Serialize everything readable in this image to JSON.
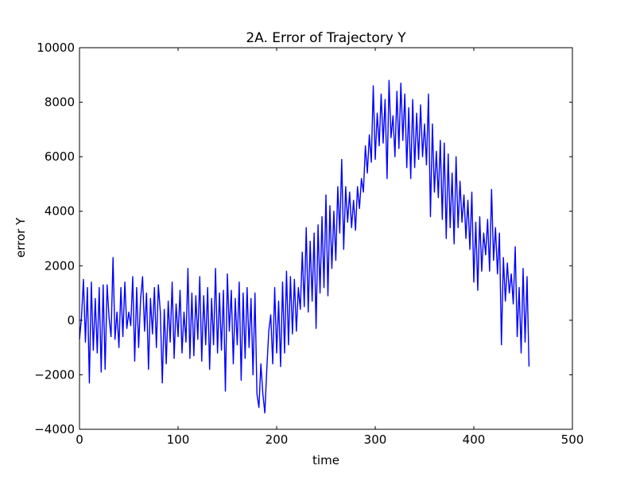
{
  "colors": {
    "line": "#0000ff",
    "axes": "#000000",
    "background": "#ffffff"
  },
  "chart_data": {
    "type": "line",
    "title": "2A. Error of Trajectory Y",
    "xlabel": "time",
    "ylabel": "error Y",
    "xlim": [
      0,
      500
    ],
    "ylim": [
      -4000,
      10000
    ],
    "xticks": [
      0,
      100,
      200,
      300,
      400,
      500
    ],
    "yticks": [
      -4000,
      -2000,
      0,
      2000,
      4000,
      6000,
      8000,
      10000
    ],
    "xtick_labels": [
      "0",
      "100",
      "200",
      "300",
      "400",
      "500"
    ],
    "ytick_labels": [
      "−4000",
      "−2000",
      "0",
      "2000",
      "4000",
      "6000",
      "8000",
      "10000"
    ],
    "grid": false,
    "legend": "none",
    "series": [
      {
        "x_start": 0,
        "x_step": 2,
        "values": [
          -700,
          100,
          1500,
          -800,
          1200,
          -2300,
          1400,
          -1100,
          800,
          -1200,
          1200,
          -1900,
          1300,
          -1800,
          1300,
          100,
          -600,
          2300,
          -700,
          300,
          -1000,
          1200,
          -600,
          1400,
          -300,
          300,
          -200,
          1600,
          -1500,
          1200,
          -1000,
          800,
          1600,
          -400,
          1000,
          -1800,
          800,
          -500,
          1200,
          -1000,
          1300,
          300,
          -2300,
          400,
          -1600,
          700,
          -800,
          1400,
          -1400,
          600,
          -600,
          1100,
          -1200,
          300,
          -800,
          1900,
          -1400,
          1000,
          -1300,
          900,
          -700,
          1600,
          -1500,
          900,
          -900,
          1200,
          -1800,
          800,
          -900,
          1900,
          -1200,
          1000,
          -1100,
          1100,
          -2600,
          1700,
          -400,
          1100,
          -1600,
          800,
          -900,
          1400,
          -2200,
          1000,
          -1400,
          1200,
          -1000,
          800,
          -2000,
          1000,
          -2700,
          -3200,
          -1600,
          -2700,
          -3400,
          -1800,
          -400,
          200,
          -1600,
          1200,
          -1200,
          700,
          -1700,
          1400,
          -1200,
          1800,
          -900,
          1600,
          -500,
          1500,
          -400,
          1200,
          400,
          2500,
          500,
          3400,
          300,
          2900,
          700,
          3200,
          -300,
          3500,
          1000,
          3800,
          1200,
          4600,
          900,
          4200,
          1900,
          4000,
          2200,
          4900,
          3200,
          5900,
          2600,
          4900,
          3600,
          4700,
          3400,
          4400,
          3300,
          4900,
          4100,
          5200,
          4700,
          6400,
          5400,
          6800,
          5800,
          8600,
          5900,
          7600,
          6400,
          8300,
          6500,
          8100,
          5200,
          8800,
          6700,
          7500,
          6000,
          8400,
          6300,
          8700,
          6600,
          8300,
          5600,
          7800,
          5200,
          8100,
          5600,
          7600,
          5900,
          7900,
          6000,
          7200,
          5700,
          8300,
          3800,
          7200,
          4700,
          6200,
          4500,
          6600,
          3700,
          6500,
          3000,
          6100,
          3400,
          5400,
          2800,
          6000,
          3400,
          5100,
          3600,
          4600,
          3000,
          4400,
          2600,
          4700,
          1400,
          3600,
          1100,
          3800,
          1800,
          3200,
          2400,
          3700,
          1800,
          4800,
          2200,
          3400,
          1700,
          3200,
          -900,
          2300,
          700,
          2100,
          1000,
          1700,
          600,
          2700,
          -600,
          1200,
          -1200,
          1900,
          -800,
          1600,
          -1700
        ]
      }
    ]
  }
}
